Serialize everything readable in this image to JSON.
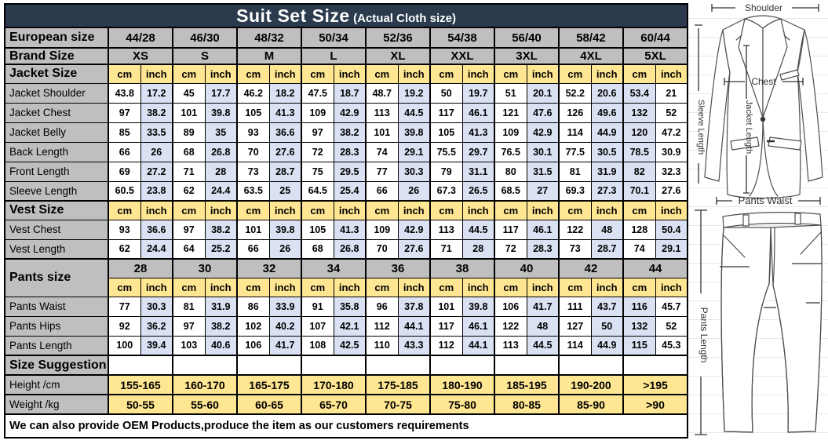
{
  "title": {
    "main": "Suit Set Size",
    "sub": "(Actual Cloth size)"
  },
  "european": {
    "label": "European size",
    "sizes": [
      "44/28",
      "46/30",
      "48/32",
      "50/34",
      "52/36",
      "54/38",
      "56/40",
      "58/42",
      "60/44"
    ]
  },
  "brand": {
    "label": "Brand Size",
    "sizes": [
      "XS",
      "S",
      "M",
      "L",
      "XL",
      "XXL",
      "3XL",
      "4XL",
      "5XL"
    ]
  },
  "units": {
    "cm": "cm",
    "inch": "inch"
  },
  "sections": [
    {
      "label": "Jacket Size",
      "swap_last_pair": true,
      "rows": [
        {
          "label": "Jacket Shoulder",
          "cm": [
            "43.8",
            "45",
            "46.2",
            "47.5",
            "48.7",
            "50",
            "51",
            "52.2",
            "53.4"
          ],
          "inch": [
            "17.2",
            "17.7",
            "18.2",
            "18.7",
            "19.2",
            "19.7",
            "20.1",
            "20.6",
            "21"
          ]
        },
        {
          "label": "Jacket Chest",
          "cm": [
            "97",
            "101",
            "105",
            "109",
            "113",
            "117",
            "121",
            "126",
            "132"
          ],
          "inch": [
            "38.2",
            "39.8",
            "41.3",
            "42.9",
            "44.5",
            "46.1",
            "47.6",
            "49.6",
            "52"
          ]
        },
        {
          "label": "Jacket Belly",
          "cm": [
            "85",
            "89",
            "93",
            "97",
            "101",
            "105",
            "109",
            "114",
            "120"
          ],
          "inch": [
            "33.5",
            "35",
            "36.6",
            "38.2",
            "39.8",
            "41.3",
            "42.9",
            "44.9",
            "47.2"
          ]
        },
        {
          "label": "Back Length",
          "cm": [
            "66",
            "68",
            "70",
            "72",
            "74",
            "75.5",
            "76.5",
            "77.5",
            "78.5"
          ],
          "inch": [
            "26",
            "26.8",
            "27.6",
            "28.3",
            "29.1",
            "29.7",
            "30.1",
            "30.5",
            "30.9"
          ]
        },
        {
          "label": "Front Length",
          "cm": [
            "69",
            "71",
            "73",
            "75",
            "77",
            "79",
            "80",
            "81",
            "82"
          ],
          "inch": [
            "27.2",
            "28",
            "28.7",
            "29.5",
            "30.3",
            "31.1",
            "31.5",
            "31.9",
            "32.3"
          ]
        },
        {
          "label": "Sleeve Length",
          "cm": [
            "60.5",
            "62",
            "63.5",
            "64.5",
            "66",
            "67.3",
            "68.5",
            "69.3",
            "70.1"
          ],
          "inch": [
            "23.8",
            "24.4",
            "25",
            "25.4",
            "26",
            "26.5",
            "27",
            "27.3",
            "27.6"
          ]
        }
      ]
    },
    {
      "label": "Vest Size",
      "swap_last_pair": false,
      "rows": [
        {
          "label": "Vest Chest",
          "cm": [
            "93",
            "97",
            "101",
            "105",
            "109",
            "113",
            "117",
            "122",
            "128"
          ],
          "inch": [
            "36.6",
            "38.2",
            "39.8",
            "41.3",
            "42.9",
            "44.5",
            "46.1",
            "48",
            "50.4"
          ]
        },
        {
          "label": "Vest Length",
          "cm": [
            "62",
            "64",
            "66",
            "68",
            "70",
            "71",
            "72",
            "73",
            "74"
          ],
          "inch": [
            "24.4",
            "25.2",
            "26",
            "26.8",
            "27.6",
            "28",
            "28.3",
            "28.7",
            "29.1"
          ]
        }
      ]
    },
    {
      "label": "Pants size",
      "swap_last_pair": true,
      "pant_sizes": [
        "28",
        "30",
        "32",
        "34",
        "36",
        "38",
        "40",
        "42",
        "44"
      ],
      "rows": [
        {
          "label": "Pants Waist",
          "cm": [
            "77",
            "81",
            "86",
            "91",
            "96",
            "101",
            "106",
            "111",
            "116"
          ],
          "inch": [
            "30.3",
            "31.9",
            "33.9",
            "35.8",
            "37.8",
            "39.8",
            "41.7",
            "43.7",
            "45.7"
          ]
        },
        {
          "label": "Pants Hips",
          "cm": [
            "92",
            "97",
            "102",
            "107",
            "112",
            "117",
            "122",
            "127",
            "132"
          ],
          "inch": [
            "36.2",
            "38.2",
            "40.2",
            "42.1",
            "44.1",
            "46.1",
            "48",
            "50",
            "52"
          ]
        },
        {
          "label": "Pants Length",
          "cm": [
            "100",
            "103",
            "106",
            "108",
            "110",
            "112",
            "113",
            "114",
            "115"
          ],
          "inch": [
            "39.4",
            "40.6",
            "41.7",
            "42.5",
            "43.3",
            "44.1",
            "44.5",
            "44.9",
            "45.3"
          ]
        }
      ]
    }
  ],
  "suggestion": {
    "label": "Size Suggestion",
    "rows": [
      {
        "label": "Height /cm",
        "values": [
          "155-165",
          "160-170",
          "165-175",
          "170-180",
          "175-185",
          "180-190",
          "185-195",
          "190-200",
          ">195"
        ]
      },
      {
        "label": "Weight /kg",
        "values": [
          "50-55",
          "55-60",
          "60-65",
          "65-70",
          "70-75",
          "75-80",
          "80-85",
          "85-90",
          ">90"
        ]
      }
    ]
  },
  "footer": "We can also provide OEM Products,produce the item as our customers requirements",
  "diagram": {
    "shoulder": "Shoulder",
    "chest": "Chest",
    "jacket_length": "Jacket Length",
    "sleeve_length": "Sleeve Length",
    "pants_waist": "Pants Waist",
    "pants_length": "Pants Length"
  },
  "colors": {
    "header_bg": "#2B3B4D",
    "label_bg": "#BFBFBF",
    "unit_bg": "#FFE692",
    "alt_cell_bg": "#D9E1F2",
    "border": "#000000"
  }
}
